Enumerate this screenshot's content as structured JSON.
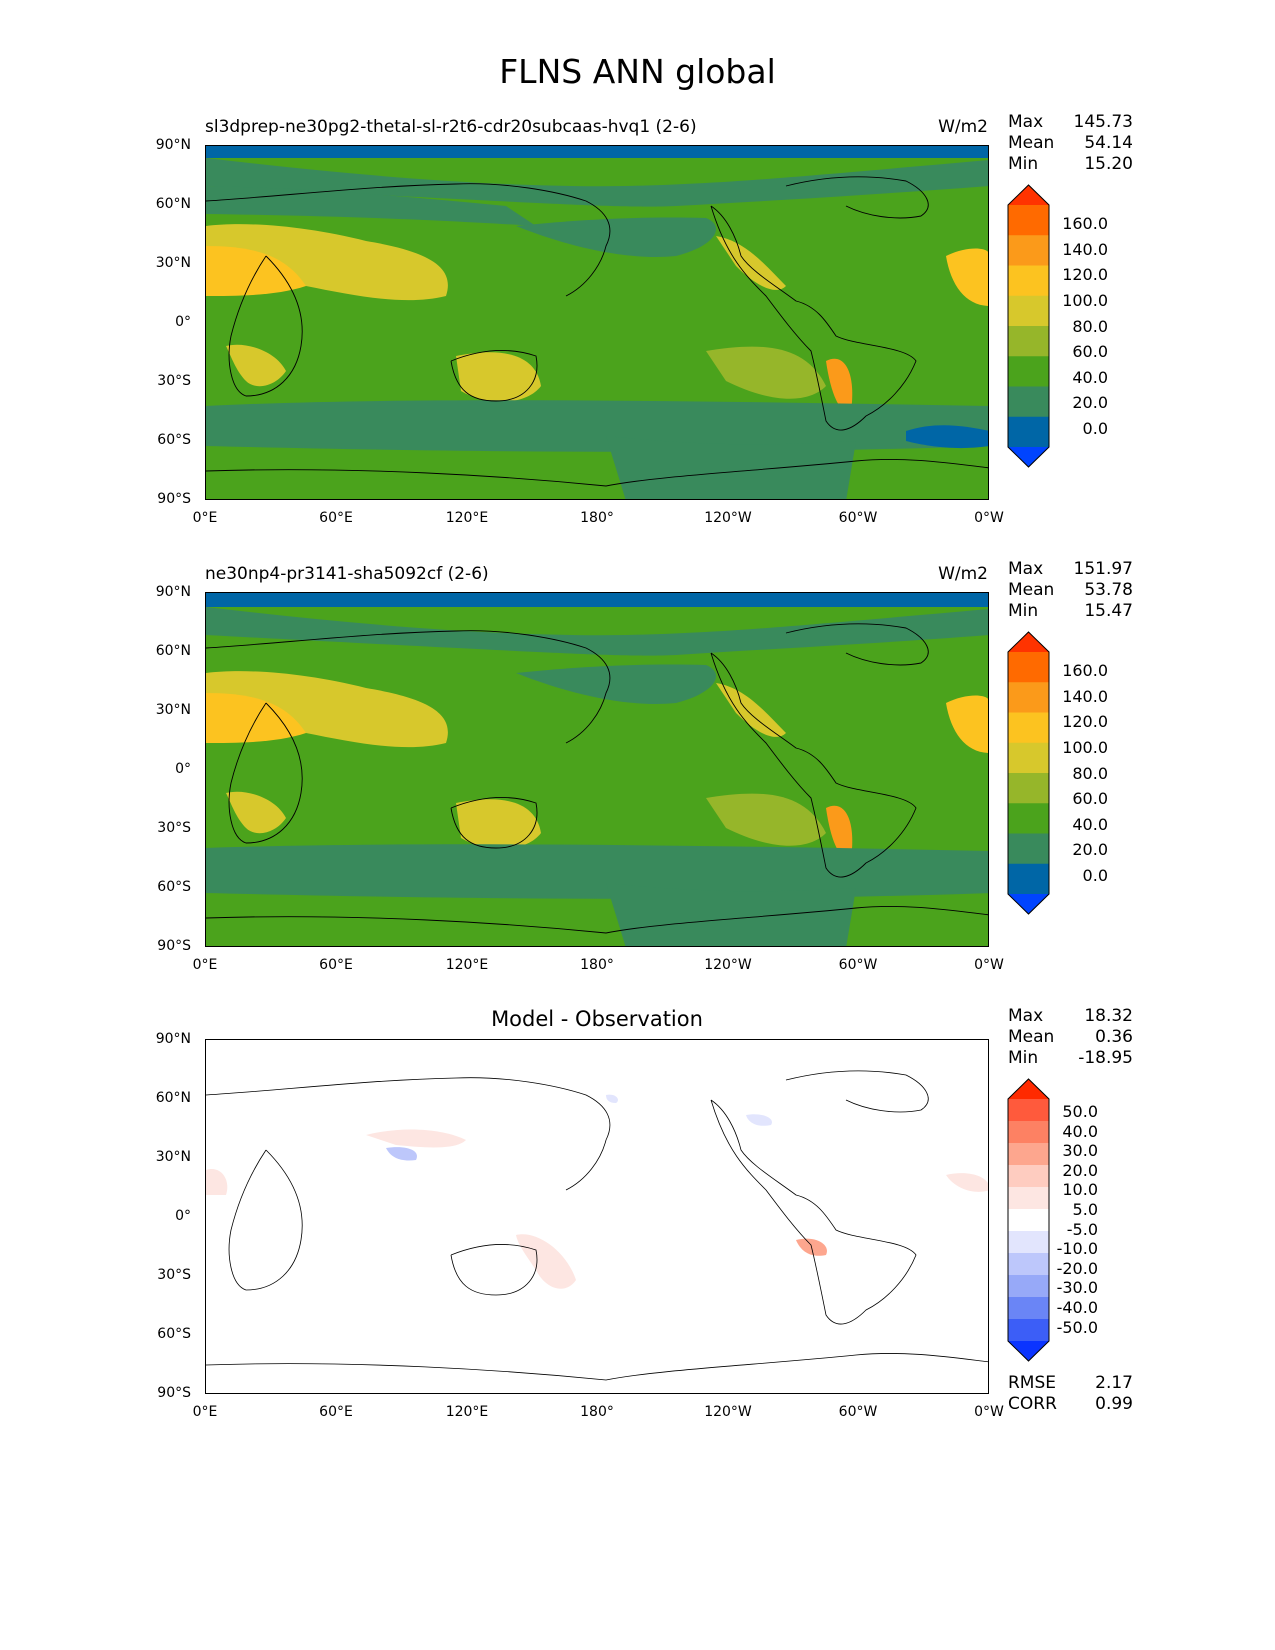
{
  "figure": {
    "title": "FLNS ANN global"
  },
  "axis_ticks": {
    "y": [
      "90°N",
      "60°N",
      "30°N",
      "0°",
      "30°S",
      "60°S",
      "90°S"
    ],
    "x": [
      "0°E",
      "60°E",
      "120°E",
      "180°",
      "120°W",
      "60°W",
      "0°W"
    ]
  },
  "panels": [
    {
      "title": "sl3dprep-ne30pg2-thetal-sl-r2t6-cdr20subcaas-hvq1 (2-6)",
      "units": "W/m2",
      "stats": [
        {
          "k": "Max",
          "v": "145.73"
        },
        {
          "k": "Mean",
          "v": "54.14"
        },
        {
          "k": "Min",
          "v": "15.20"
        }
      ],
      "colorbar_labels": [
        "160.0",
        "140.0",
        "120.0",
        "100.0",
        "80.0",
        "60.0",
        "40.0",
        "20.0",
        "0.0"
      ],
      "colorbar_colors": [
        "#ff3300",
        "#ff6a00",
        "#fb9a1a",
        "#fcc320",
        "#d7c82c",
        "#96b62a",
        "#4ba31c",
        "#398a5c",
        "#0066a6",
        "#0044ff"
      ]
    },
    {
      "title": "ne30np4-pr3141-sha5092cf (2-6)",
      "units": "W/m2",
      "stats": [
        {
          "k": "Max",
          "v": "151.97"
        },
        {
          "k": "Mean",
          "v": "53.78"
        },
        {
          "k": "Min",
          "v": "15.47"
        }
      ],
      "colorbar_labels": [
        "160.0",
        "140.0",
        "120.0",
        "100.0",
        "80.0",
        "60.0",
        "40.0",
        "20.0",
        "0.0"
      ],
      "colorbar_colors": [
        "#ff3300",
        "#ff6a00",
        "#fb9a1a",
        "#fcc320",
        "#d7c82c",
        "#96b62a",
        "#4ba31c",
        "#398a5c",
        "#0066a6",
        "#0044ff"
      ]
    },
    {
      "title": "Model - Observation",
      "units": "",
      "stats": [
        {
          "k": "Max",
          "v": "18.32"
        },
        {
          "k": "Mean",
          "v": "0.36"
        },
        {
          "k": "Min",
          "v": "-18.95"
        }
      ],
      "colorbar_labels": [
        "50.0",
        "40.0",
        "30.0",
        "20.0",
        "10.0",
        "5.0",
        "-5.0",
        "-10.0",
        "-20.0",
        "-30.0",
        "-40.0",
        "-50.0"
      ],
      "colorbar_colors": [
        "#ff2a00",
        "#ff5a3c",
        "#fd8163",
        "#fda68e",
        "#feccc0",
        "#fde6e2",
        "#ffffff",
        "#e2e5fd",
        "#bdc7fb",
        "#97a9f8",
        "#6a85f6",
        "#3c5ef7",
        "#0b34ff"
      ],
      "footer_stats": [
        {
          "k": "RMSE",
          "v": "2.17"
        },
        {
          "k": "CORR",
          "v": "0.99"
        }
      ]
    }
  ],
  "chart_data": [
    {
      "type": "heatmap",
      "title": "sl3dprep-ne30pg2-thetal-sl-r2t6-cdr20subcaas-hvq1 (2-6)",
      "units": "W/m2",
      "xlim": [
        0,
        360
      ],
      "ylim": [
        -90,
        90
      ],
      "levels": [
        0,
        20,
        40,
        60,
        80,
        100,
        120,
        140,
        160
      ],
      "colorbar_extend": "both",
      "max": 145.73,
      "mean": 54.14,
      "min": 15.2
    },
    {
      "type": "heatmap",
      "title": "ne30np4-pr3141-sha5092cf (2-6)",
      "units": "W/m2",
      "xlim": [
        0,
        360
      ],
      "ylim": [
        -90,
        90
      ],
      "levels": [
        0,
        20,
        40,
        60,
        80,
        100,
        120,
        140,
        160
      ],
      "colorbar_extend": "both",
      "max": 151.97,
      "mean": 53.78,
      "min": 15.47
    },
    {
      "type": "heatmap",
      "title": "Model - Observation",
      "xlim": [
        0,
        360
      ],
      "ylim": [
        -90,
        90
      ],
      "levels": [
        -50,
        -40,
        -30,
        -20,
        -10,
        -5,
        5,
        10,
        20,
        30,
        40,
        50
      ],
      "colorbar_extend": "both",
      "max": 18.32,
      "mean": 0.36,
      "min": -18.95,
      "rmse": 2.17,
      "corr": 0.99
    }
  ]
}
